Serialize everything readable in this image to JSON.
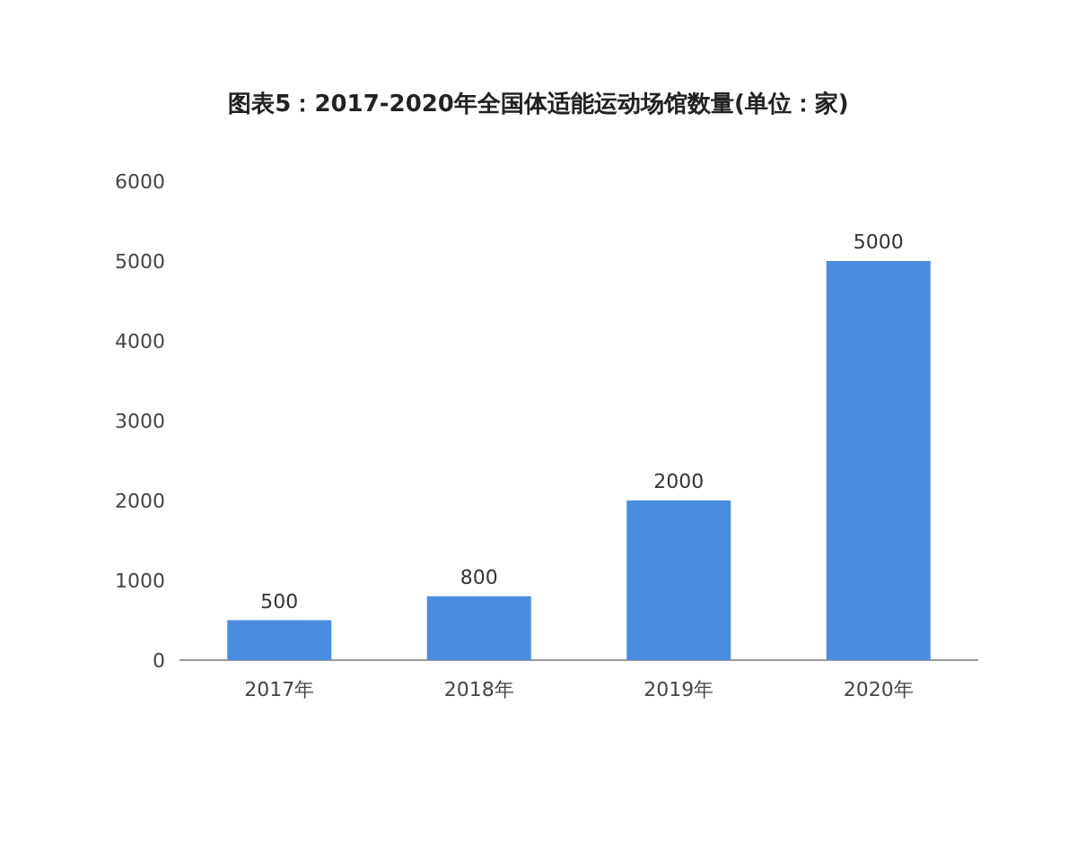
{
  "chart_data": {
    "type": "bar",
    "title": "图表5：2017-2020年全国体适能运动场馆数量(单位：家)",
    "categories": [
      "2017年",
      "2018年",
      "2019年",
      "2020年"
    ],
    "values": [
      500,
      800,
      2000,
      5000
    ],
    "color": "#4a8ce0",
    "ylim": [
      0,
      6000
    ],
    "yticks": [
      0,
      1000,
      2000,
      3000,
      4000,
      5000,
      6000
    ],
    "data_labels": true
  }
}
